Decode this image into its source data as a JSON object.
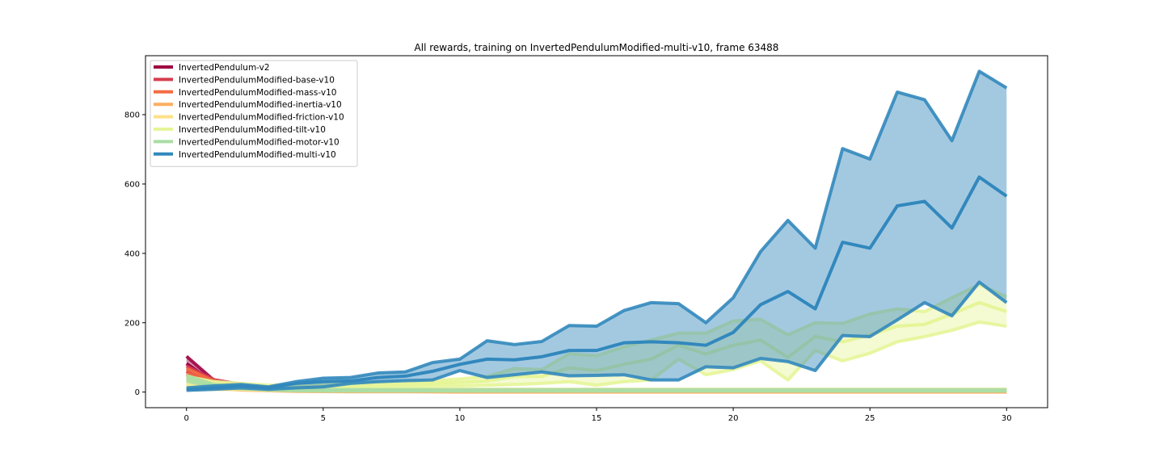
{
  "chart_data": {
    "type": "line",
    "title": "All rewards, training on InvertedPendulumModified-multi-v10, frame 63488",
    "xlabel": "",
    "ylabel": "",
    "xlim": [
      -1.5,
      31.5
    ],
    "ylim": [
      -45,
      970
    ],
    "xticks": [
      0,
      5,
      10,
      15,
      20,
      25,
      30
    ],
    "yticks": [
      0,
      200,
      400,
      600,
      800
    ],
    "grid": false,
    "legend_position": "upper-left",
    "series": [
      {
        "name": "InvertedPendulum-v2",
        "color": "#9e0142",
        "x": [
          0,
          1
        ],
        "mean": [
          82,
          28
        ],
        "upper": [
          103,
          34
        ],
        "lower": [
          60,
          22
        ]
      },
      {
        "name": "InvertedPendulumModified-base-v10",
        "color": "#d53e4f",
        "x": [
          0,
          1,
          2,
          3
        ],
        "mean": [
          60,
          30,
          18,
          12
        ],
        "upper": [
          75,
          36,
          22,
          14
        ],
        "lower": [
          45,
          24,
          14,
          10
        ]
      },
      {
        "name": "InvertedPendulumModified-mass-v10",
        "color": "#f46d43",
        "x": [
          0,
          1,
          2,
          3
        ],
        "mean": [
          52,
          26,
          15,
          10
        ],
        "upper": [
          68,
          32,
          18,
          12
        ],
        "lower": [
          36,
          20,
          12,
          8
        ]
      },
      {
        "name": "InvertedPendulumModified-inertia-v10",
        "color": "#fdae61",
        "x": [
          0,
          2,
          4,
          6,
          8,
          10,
          12,
          14,
          16,
          18,
          20,
          22,
          24,
          26,
          28,
          30
        ],
        "mean": [
          30,
          10,
          4,
          2,
          2,
          1,
          1,
          1,
          1,
          1,
          1,
          1,
          1,
          1,
          1,
          1
        ],
        "upper": [
          45,
          14,
          6,
          3,
          3,
          2,
          2,
          2,
          2,
          2,
          2,
          2,
          2,
          2,
          2,
          2
        ],
        "lower": [
          15,
          6,
          2,
          1,
          1,
          0,
          0,
          0,
          0,
          0,
          0,
          0,
          0,
          0,
          0,
          0
        ]
      },
      {
        "name": "InvertedPendulumModified-friction-v10",
        "color": "#fee08b",
        "x": [
          0,
          1,
          2,
          3,
          4,
          5,
          6,
          7,
          8,
          9,
          10,
          11,
          12,
          13,
          14,
          15,
          16,
          17,
          18,
          19,
          20,
          21,
          22,
          23,
          24,
          25,
          26,
          27,
          28,
          29,
          30
        ],
        "mean": [
          15,
          12,
          10,
          8,
          7,
          6,
          6,
          6,
          6,
          6,
          6,
          6,
          6,
          6,
          6,
          6,
          6,
          6,
          6,
          6,
          6,
          6,
          6,
          6,
          6,
          6,
          6,
          6,
          6,
          6,
          6
        ],
        "upper": [
          22,
          16,
          13,
          11,
          9,
          8,
          8,
          8,
          8,
          8,
          8,
          8,
          8,
          8,
          8,
          8,
          8,
          8,
          8,
          8,
          8,
          8,
          8,
          8,
          8,
          8,
          8,
          8,
          8,
          8,
          8
        ],
        "lower": [
          8,
          8,
          7,
          5,
          5,
          4,
          4,
          4,
          4,
          4,
          4,
          4,
          4,
          4,
          4,
          4,
          4,
          4,
          4,
          4,
          4,
          4,
          4,
          4,
          4,
          4,
          4,
          4,
          4,
          4,
          4
        ]
      },
      {
        "name": "InvertedPendulumModified-tilt-v10",
        "color": "#e6f598",
        "x": [
          0,
          1,
          2,
          3,
          4,
          5,
          6,
          7,
          8,
          9,
          10,
          11,
          12,
          13,
          14,
          15,
          16,
          17,
          18,
          19,
          20,
          21,
          22,
          23,
          24,
          25,
          26,
          27,
          28,
          29,
          30
        ],
        "mean": [
          30,
          22,
          18,
          15,
          16,
          17,
          18,
          20,
          22,
          25,
          28,
          32,
          45,
          45,
          70,
          62,
          80,
          95,
          135,
          110,
          135,
          150,
          100,
          160,
          145,
          165,
          190,
          195,
          225,
          258,
          232
        ],
        "upper": [
          45,
          30,
          25,
          20,
          22,
          25,
          25,
          28,
          30,
          33,
          38,
          45,
          68,
          65,
          110,
          105,
          130,
          150,
          170,
          170,
          205,
          210,
          165,
          200,
          198,
          225,
          240,
          232,
          272,
          310,
          275
        ],
        "lower": [
          15,
          12,
          10,
          10,
          10,
          10,
          12,
          12,
          14,
          17,
          18,
          20,
          22,
          25,
          30,
          20,
          30,
          35,
          95,
          50,
          65,
          90,
          35,
          120,
          90,
          112,
          145,
          160,
          178,
          202,
          190
        ]
      },
      {
        "name": "InvertedPendulumModified-motor-v10",
        "color": "#abdda4",
        "x": [
          0,
          1,
          2,
          3,
          4,
          5,
          6,
          7,
          8,
          9,
          10,
          11,
          12,
          13,
          14,
          15,
          16,
          17,
          18,
          19,
          20,
          21,
          22,
          23,
          24,
          25,
          26,
          27,
          28,
          29,
          30
        ],
        "mean": [
          40,
          18,
          12,
          8,
          6,
          5,
          5,
          5,
          5,
          5,
          5,
          5,
          5,
          5,
          5,
          5,
          5,
          5,
          5,
          5,
          5,
          5,
          5,
          5,
          5,
          5,
          5,
          5,
          5,
          5,
          5
        ],
        "upper": [
          48,
          22,
          14,
          10,
          8,
          7,
          7,
          7,
          7,
          7,
          7,
          7,
          7,
          7,
          7,
          7,
          7,
          7,
          7,
          7,
          7,
          7,
          7,
          7,
          7,
          7,
          7,
          7,
          7,
          7,
          7
        ],
        "lower": [
          32,
          14,
          10,
          6,
          4,
          3,
          3,
          3,
          3,
          3,
          3,
          3,
          3,
          3,
          3,
          3,
          3,
          3,
          3,
          3,
          3,
          3,
          3,
          3,
          3,
          3,
          3,
          3,
          3,
          3,
          3
        ]
      },
      {
        "name": "InvertedPendulumModified-multi-v10",
        "color": "#3288bd",
        "x": [
          0,
          1,
          2,
          3,
          4,
          5,
          6,
          7,
          8,
          9,
          10,
          11,
          12,
          13,
          14,
          15,
          16,
          17,
          18,
          19,
          20,
          21,
          22,
          23,
          24,
          25,
          26,
          27,
          28,
          29,
          30
        ],
        "mean": [
          8,
          12,
          18,
          12,
          25,
          30,
          32,
          42,
          46,
          60,
          80,
          95,
          93,
          102,
          120,
          120,
          142,
          145,
          142,
          135,
          172,
          252,
          290,
          240,
          432,
          415,
          537,
          550,
          473,
          620,
          565
        ],
        "upper": [
          12,
          18,
          22,
          15,
          30,
          40,
          42,
          55,
          58,
          85,
          95,
          148,
          137,
          146,
          192,
          190,
          235,
          258,
          255,
          200,
          272,
          405,
          495,
          415,
          702,
          672,
          865,
          843,
          725,
          925,
          877
        ],
        "lower": [
          5,
          8,
          12,
          8,
          12,
          15,
          25,
          30,
          33,
          35,
          62,
          42,
          50,
          58,
          47,
          48,
          50,
          35,
          35,
          73,
          70,
          97,
          88,
          62,
          163,
          160,
          208,
          258,
          220,
          317,
          258
        ]
      }
    ]
  }
}
